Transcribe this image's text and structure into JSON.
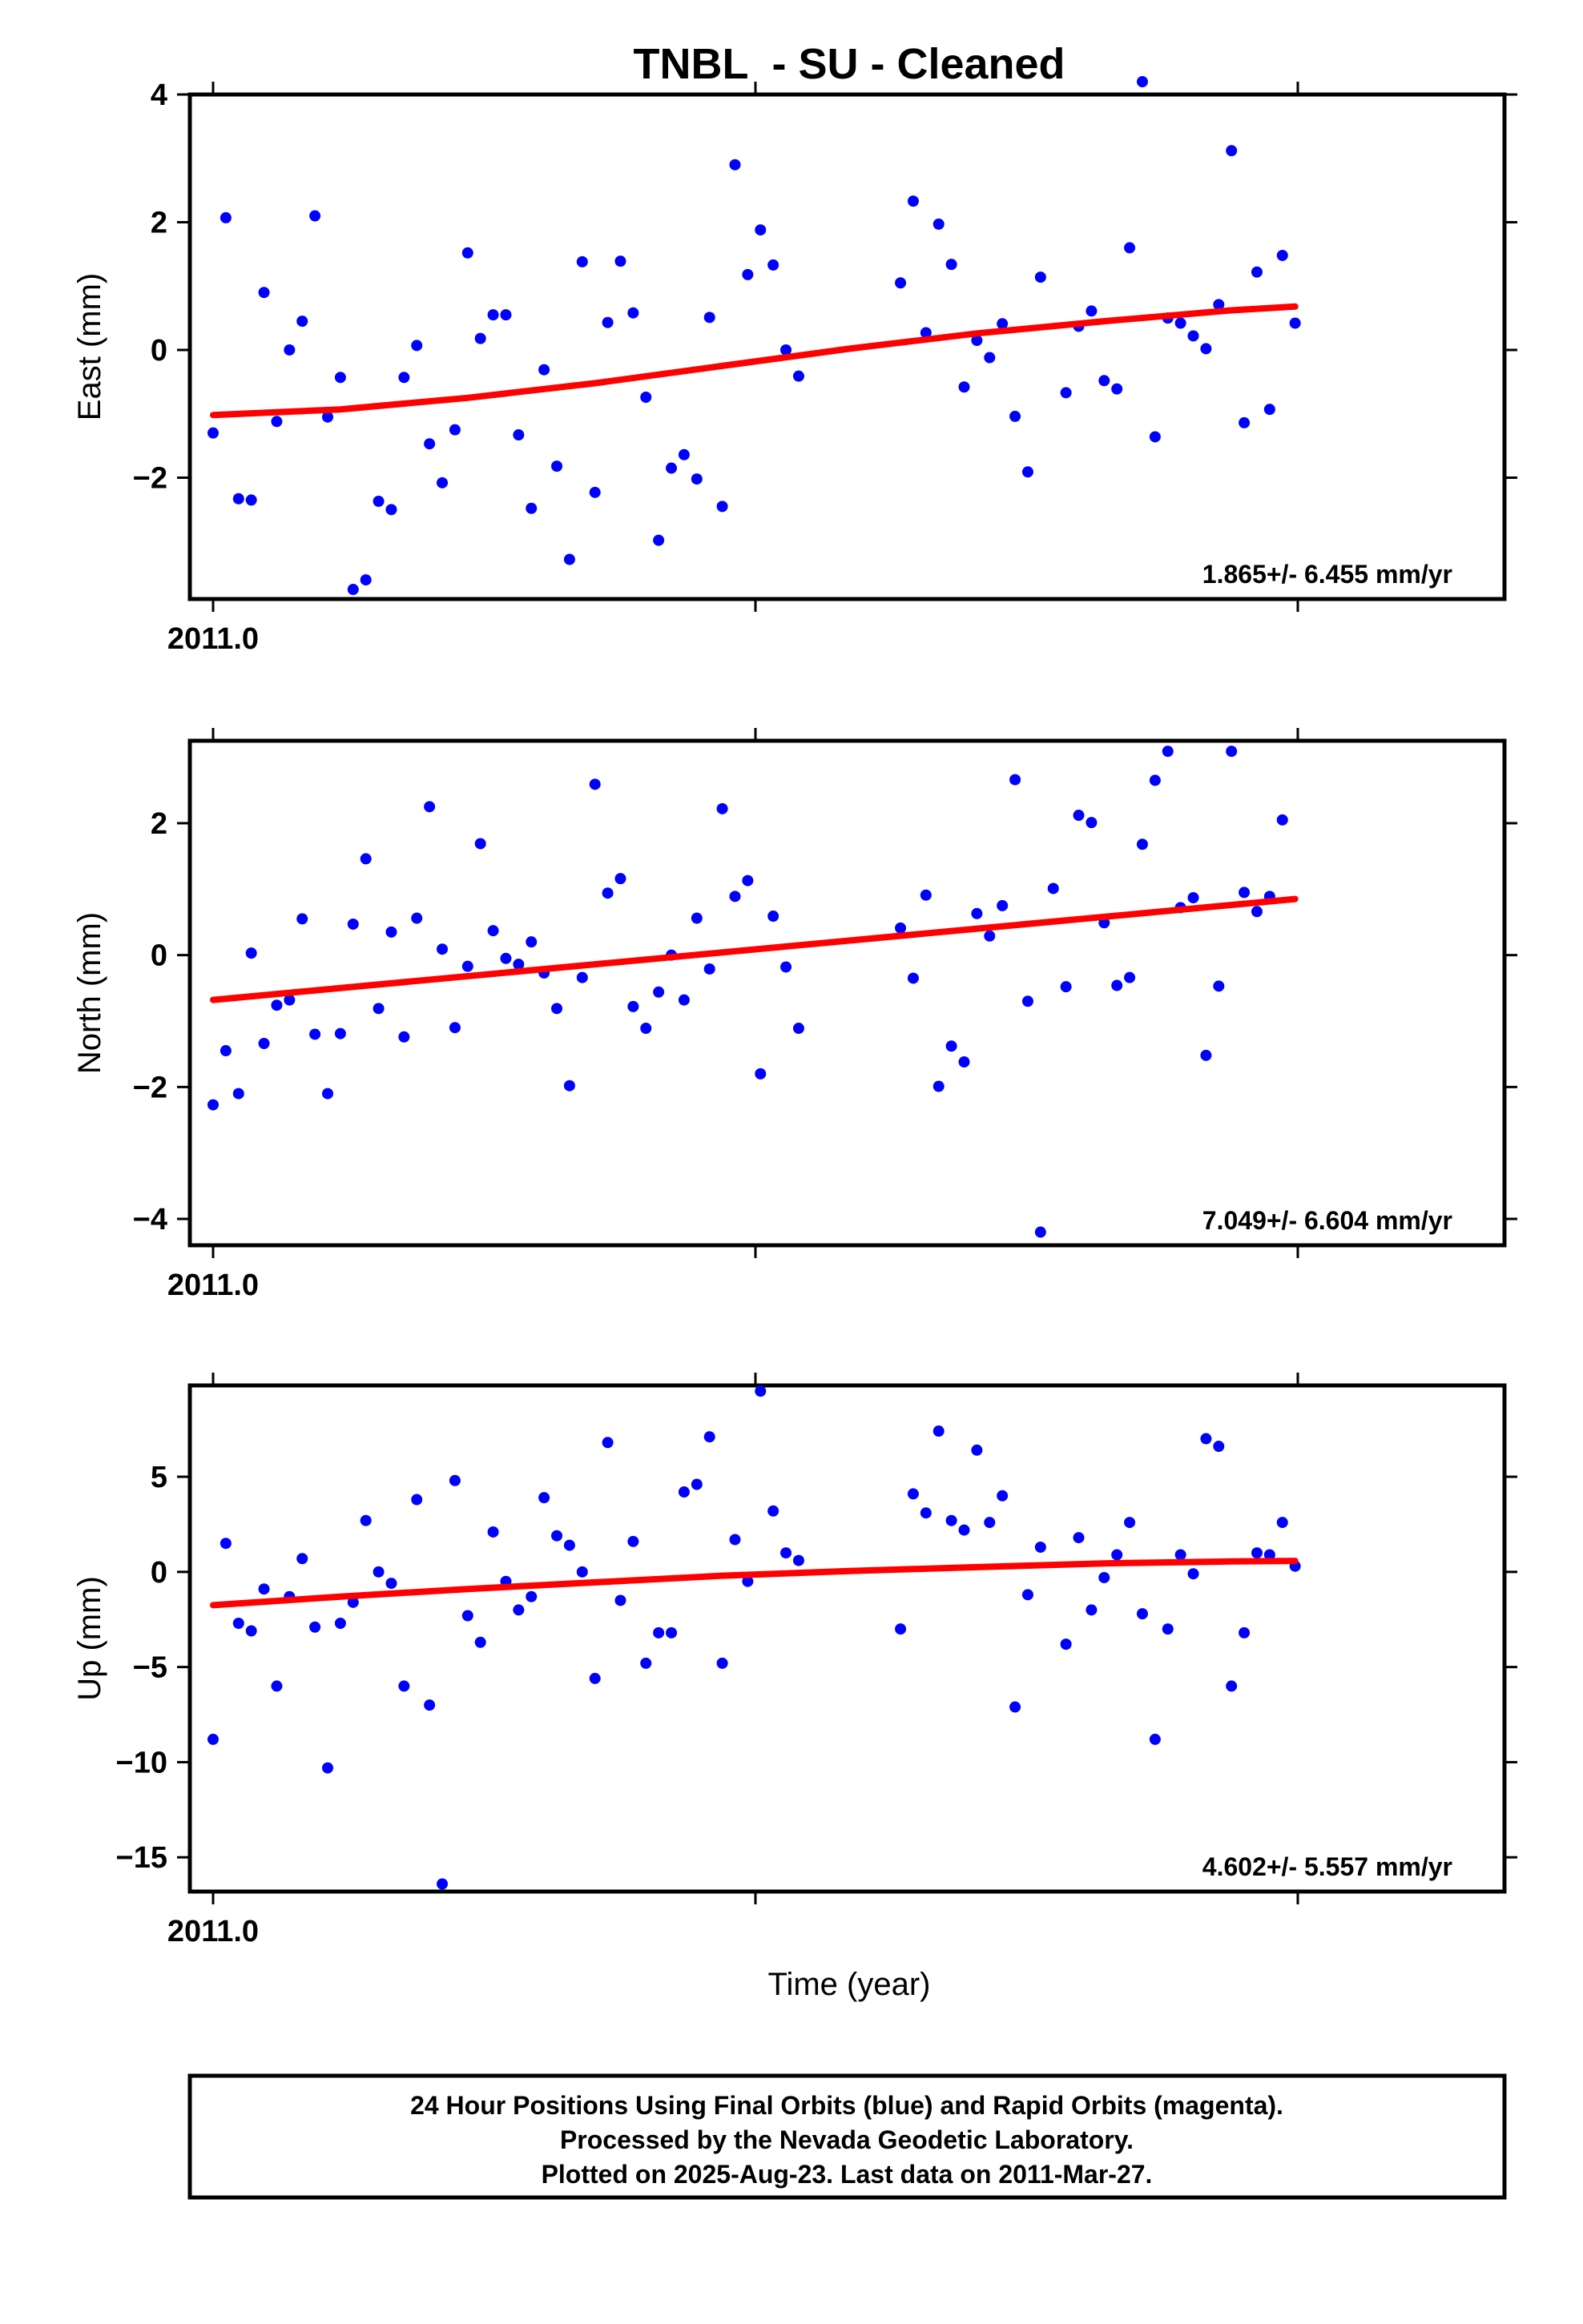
{
  "chart_data": [
    {
      "type": "scatter",
      "title": "TNBL  - SU - Cleaned",
      "ylabel": "East (mm)",
      "x_tick_label": "2011.0",
      "ylim": [
        -3.9,
        4.0
      ],
      "yticks": [
        4,
        2,
        0,
        -2
      ],
      "ytick_labels": [
        "4",
        "2",
        "0",
        "−2"
      ],
      "rate": "1.865+/- 6.455 mm/yr",
      "points": [
        [
          0,
          -1.3
        ],
        [
          1,
          2.07
        ],
        [
          2,
          -2.33
        ],
        [
          3,
          -2.35
        ],
        [
          4,
          0.9
        ],
        [
          5,
          -1.12
        ],
        [
          6,
          0.0
        ],
        [
          7,
          0.45
        ],
        [
          8,
          2.1
        ],
        [
          9,
          -1.05
        ],
        [
          10,
          -0.43
        ],
        [
          11,
          -3.75
        ],
        [
          12,
          -3.6
        ],
        [
          13,
          -2.37
        ],
        [
          14,
          -2.5
        ],
        [
          15,
          -0.43
        ],
        [
          16,
          0.07
        ],
        [
          17,
          -1.47
        ],
        [
          18,
          -2.08
        ],
        [
          19,
          -1.25
        ],
        [
          20,
          1.52
        ],
        [
          21,
          0.18
        ],
        [
          22,
          0.55
        ],
        [
          23,
          0.55
        ],
        [
          24,
          -1.33
        ],
        [
          25,
          -2.48
        ],
        [
          26,
          -0.31
        ],
        [
          27,
          -1.82
        ],
        [
          28,
          -3.28
        ],
        [
          29,
          1.38
        ],
        [
          30,
          -2.23
        ],
        [
          31,
          0.43
        ],
        [
          32,
          1.39
        ],
        [
          33,
          0.58
        ],
        [
          34,
          -0.74
        ],
        [
          35,
          -2.98
        ],
        [
          36,
          -1.85
        ],
        [
          37,
          -1.64
        ],
        [
          38,
          -2.02
        ],
        [
          39,
          0.51
        ],
        [
          40,
          -2.45
        ],
        [
          41,
          2.9
        ],
        [
          42,
          1.18
        ],
        [
          43,
          1.88
        ],
        [
          44,
          1.33
        ],
        [
          45,
          0.0
        ],
        [
          46,
          -0.41
        ],
        [
          54,
          1.05
        ],
        [
          55,
          2.33
        ],
        [
          56,
          0.27
        ],
        [
          57,
          1.97
        ],
        [
          58,
          1.34
        ],
        [
          59,
          -0.58
        ],
        [
          60,
          0.15
        ],
        [
          61,
          -0.12
        ],
        [
          62,
          0.41
        ],
        [
          63,
          -1.04
        ],
        [
          64,
          -1.91
        ],
        [
          65,
          1.14
        ],
        [
          67,
          -0.67
        ],
        [
          68,
          0.37
        ],
        [
          69,
          0.61
        ],
        [
          70,
          -0.48
        ],
        [
          71,
          -0.61
        ],
        [
          72,
          1.6
        ],
        [
          73,
          4.2
        ],
        [
          74,
          -1.36
        ],
        [
          75,
          0.5
        ],
        [
          76,
          0.42
        ],
        [
          77,
          0.22
        ],
        [
          78,
          0.02
        ],
        [
          79,
          0.71
        ],
        [
          80,
          3.12
        ],
        [
          81,
          -1.14
        ],
        [
          82,
          1.22
        ],
        [
          83,
          -0.93
        ],
        [
          84,
          1.48
        ],
        [
          85,
          0.42
        ]
      ],
      "trend": [
        [
          0,
          -1.02
        ],
        [
          10,
          -0.93
        ],
        [
          20,
          -0.75
        ],
        [
          30,
          -0.52
        ],
        [
          40,
          -0.25
        ],
        [
          50,
          0.02
        ],
        [
          60,
          0.26
        ],
        [
          70,
          0.45
        ],
        [
          80,
          0.62
        ],
        [
          85,
          0.68
        ]
      ]
    },
    {
      "type": "scatter",
      "ylabel": "North (mm)",
      "x_tick_label": "2011.0",
      "ylim": [
        -4.4,
        3.25
      ],
      "yticks": [
        2,
        0,
        -2,
        -4
      ],
      "ytick_labels": [
        "2",
        "0",
        "−2",
        "−4"
      ],
      "rate": "7.049+/- 6.604 mm/yr",
      "points": [
        [
          0,
          -2.27
        ],
        [
          1,
          -1.45
        ],
        [
          2,
          -2.1
        ],
        [
          3,
          0.03
        ],
        [
          4,
          -1.34
        ],
        [
          5,
          -0.76
        ],
        [
          6,
          -0.68
        ],
        [
          7,
          0.55
        ],
        [
          8,
          -1.2
        ],
        [
          9,
          -2.1
        ],
        [
          10,
          -1.19
        ],
        [
          11,
          0.47
        ],
        [
          12,
          1.46
        ],
        [
          13,
          -0.81
        ],
        [
          14,
          0.35
        ],
        [
          15,
          -1.24
        ],
        [
          16,
          0.56
        ],
        [
          17,
          2.25
        ],
        [
          18,
          0.09
        ],
        [
          19,
          -1.1
        ],
        [
          20,
          -0.17
        ],
        [
          21,
          1.69
        ],
        [
          22,
          0.37
        ],
        [
          23,
          -0.05
        ],
        [
          24,
          -0.14
        ],
        [
          25,
          0.2
        ],
        [
          26,
          -0.27
        ],
        [
          27,
          -0.81
        ],
        [
          28,
          -1.98
        ],
        [
          29,
          -0.34
        ],
        [
          30,
          2.59
        ],
        [
          31,
          0.94
        ],
        [
          32,
          1.16
        ],
        [
          33,
          -0.78
        ],
        [
          34,
          -1.11
        ],
        [
          35,
          -0.56
        ],
        [
          36,
          0.0
        ],
        [
          37,
          -0.68
        ],
        [
          38,
          0.56
        ],
        [
          39,
          -0.21
        ],
        [
          40,
          2.22
        ],
        [
          41,
          0.89
        ],
        [
          42,
          1.13
        ],
        [
          43,
          -1.8
        ],
        [
          44,
          0.59
        ],
        [
          45,
          -0.18
        ],
        [
          46,
          -1.11
        ],
        [
          54,
          0.41
        ],
        [
          55,
          -0.35
        ],
        [
          56,
          0.91
        ],
        [
          57,
          -1.99
        ],
        [
          58,
          -1.38
        ],
        [
          59,
          -1.62
        ],
        [
          60,
          0.63
        ],
        [
          61,
          0.29
        ],
        [
          62,
          0.75
        ],
        [
          63,
          2.66
        ],
        [
          64,
          -0.7
        ],
        [
          66,
          1.01
        ],
        [
          67,
          -0.48
        ],
        [
          68,
          2.12
        ],
        [
          69,
          2.01
        ],
        [
          70,
          0.49
        ],
        [
          71,
          -0.46
        ],
        [
          72,
          -0.34
        ],
        [
          73,
          1.68
        ],
        [
          74,
          2.65
        ],
        [
          75,
          3.09
        ],
        [
          76,
          0.72
        ],
        [
          77,
          0.87
        ],
        [
          78,
          -1.52
        ],
        [
          79,
          -0.47
        ],
        [
          80,
          3.09
        ],
        [
          81,
          0.95
        ],
        [
          82,
          0.66
        ],
        [
          83,
          0.89
        ],
        [
          84,
          2.05
        ],
        [
          65,
          -4.2
        ]
      ],
      "trend": [
        [
          0,
          -0.68
        ],
        [
          85,
          0.85
        ]
      ]
    },
    {
      "type": "scatter",
      "ylabel": "Up (mm)",
      "x_tick_label": "2011.0",
      "ylim": [
        -16.8,
        9.8
      ],
      "yticks": [
        5,
        0,
        -5,
        -10,
        -15
      ],
      "ytick_labels": [
        "5",
        "0",
        "−5",
        "−10",
        "−15"
      ],
      "rate": "4.602+/- 5.557 mm/yr",
      "xlabel": "Time (year)",
      "points": [
        [
          0,
          -8.8
        ],
        [
          1,
          1.5
        ],
        [
          2,
          -2.7
        ],
        [
          3,
          -3.1
        ],
        [
          4,
          -0.9
        ],
        [
          5,
          -6.0
        ],
        [
          6,
          -1.3
        ],
        [
          7,
          0.7
        ],
        [
          8,
          -2.9
        ],
        [
          9,
          -10.3
        ],
        [
          10,
          -2.7
        ],
        [
          11,
          -1.6
        ],
        [
          12,
          2.7
        ],
        [
          13,
          0.0
        ],
        [
          14,
          -0.6
        ],
        [
          15,
          -6.0
        ],
        [
          16,
          3.8
        ],
        [
          17,
          -7.0
        ],
        [
          18,
          -16.4
        ],
        [
          19,
          4.8
        ],
        [
          20,
          -2.3
        ],
        [
          21,
          -3.7
        ],
        [
          22,
          2.1
        ],
        [
          23,
          -0.5
        ],
        [
          24,
          -2.0
        ],
        [
          25,
          -1.3
        ],
        [
          26,
          3.9
        ],
        [
          27,
          1.9
        ],
        [
          28,
          1.4
        ],
        [
          29,
          0.0
        ],
        [
          30,
          -5.6
        ],
        [
          31,
          6.8
        ],
        [
          32,
          -1.5
        ],
        [
          33,
          1.6
        ],
        [
          34,
          -4.8
        ],
        [
          35,
          -3.2
        ],
        [
          36,
          -3.2
        ],
        [
          37,
          4.2
        ],
        [
          38,
          4.6
        ],
        [
          39,
          7.1
        ],
        [
          40,
          -4.8
        ],
        [
          41,
          1.7
        ],
        [
          42,
          -0.5
        ],
        [
          43,
          9.5
        ],
        [
          44,
          3.2
        ],
        [
          45,
          1.0
        ],
        [
          46,
          0.6
        ],
        [
          54,
          -3.0
        ],
        [
          55,
          4.1
        ],
        [
          56,
          3.1
        ],
        [
          57,
          7.4
        ],
        [
          58,
          2.7
        ],
        [
          59,
          2.2
        ],
        [
          60,
          6.4
        ],
        [
          61,
          2.6
        ],
        [
          62,
          4.0
        ],
        [
          63,
          -7.1
        ],
        [
          64,
          -1.2
        ],
        [
          65,
          1.3
        ],
        [
          67,
          -3.8
        ],
        [
          68,
          1.8
        ],
        [
          69,
          -2.0
        ],
        [
          70,
          -0.3
        ],
        [
          71,
          0.9
        ],
        [
          72,
          2.6
        ],
        [
          73,
          -2.2
        ],
        [
          74,
          -8.8
        ],
        [
          75,
          -3.0
        ],
        [
          76,
          0.9
        ],
        [
          77,
          -0.1
        ],
        [
          78,
          7.0
        ],
        [
          79,
          6.6
        ],
        [
          80,
          -6.0
        ],
        [
          81,
          -3.2
        ],
        [
          82,
          1.0
        ],
        [
          83,
          0.9
        ],
        [
          84,
          2.6
        ],
        [
          85,
          0.3
        ]
      ],
      "trend": [
        [
          0,
          -1.75
        ],
        [
          10,
          -1.3
        ],
        [
          20,
          -0.9
        ],
        [
          30,
          -0.55
        ],
        [
          40,
          -0.2
        ],
        [
          50,
          0.05
        ],
        [
          60,
          0.25
        ],
        [
          70,
          0.45
        ],
        [
          80,
          0.55
        ],
        [
          85,
          0.58
        ]
      ]
    }
  ],
  "footer": {
    "line1": "24 Hour Positions Using Final Orbits (blue) and Rapid Orbits (magenta).",
    "line2": "Processed by the Nevada Geodetic Laboratory.",
    "line3": "Plotted on 2025-Aug-23. Last data on 2011-Mar-27."
  },
  "colors": {
    "points": "#0000ff",
    "trend": "#ff0000",
    "frame": "#000000"
  }
}
